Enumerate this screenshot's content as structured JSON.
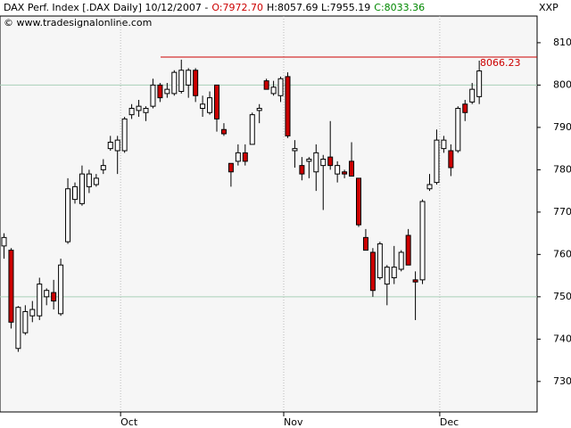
{
  "chart_data": {
    "type": "candlestick",
    "title": "DAX Perf. Index [.DAX  Daily] 10/12/2007 -",
    "header_open": "O:7972.70",
    "header_high_low": "H:8057.69 L:7955.19",
    "header_close": "C:8033.36",
    "copyright": "© www.tradesignalonline.com",
    "axis_label": "XXP",
    "categories": [
      null,
      null,
      null,
      null,
      null,
      null,
      null,
      null,
      null,
      null,
      null,
      null,
      null,
      null,
      null,
      null,
      null,
      "Oct",
      null,
      null,
      null,
      null,
      null,
      null,
      null,
      null,
      null,
      null,
      null,
      null,
      null,
      null,
      null,
      null,
      null,
      null,
      null,
      null,
      null,
      null,
      "Nov",
      null,
      null,
      null,
      null,
      null,
      null,
      null,
      null,
      null,
      null,
      null,
      null,
      null,
      null,
      null,
      null,
      null,
      null,
      null,
      null,
      null,
      "Dec",
      null,
      null,
      null,
      null,
      null
    ],
    "open": [
      7620,
      7610,
      7378,
      7415,
      7455,
      7455,
      7500,
      7510,
      7460,
      7630,
      7730,
      7720,
      7760,
      7765,
      7800,
      7850,
      7845,
      7845,
      7930,
      7940,
      7935,
      7950,
      8000,
      7980,
      7980,
      7985,
      8000,
      8035,
      7945,
      7935,
      8000,
      7895,
      7815,
      7820,
      7840,
      7860,
      7940,
      8010,
      7980,
      7975,
      8020,
      7845,
      7810,
      7820,
      7795,
      7810,
      7830,
      7790,
      7795,
      7820,
      7780,
      7640,
      7605,
      7545,
      7530,
      7545,
      7565,
      7645,
      7540,
      7540,
      7755,
      7770,
      7850,
      7845,
      7845,
      7955,
      7960,
      7972.7
    ],
    "high": [
      7650,
      7615,
      7478,
      7480,
      7490,
      7545,
      7520,
      7540,
      7590,
      7780,
      7770,
      7810,
      7800,
      7790,
      7825,
      7880,
      7880,
      7925,
      7955,
      7965,
      7950,
      8015,
      8005,
      8005,
      8035,
      8060,
      8040,
      8040,
      7975,
      7985,
      8000,
      7910,
      7815,
      7860,
      7860,
      7935,
      7955,
      8015,
      8010,
      8020,
      8030,
      7870,
      7830,
      7830,
      7860,
      7835,
      7915,
      7820,
      7800,
      7865,
      7780,
      7660,
      7615,
      7630,
      7575,
      7620,
      7610,
      7660,
      7560,
      7730,
      7790,
      7895,
      7880,
      7860,
      7950,
      7965,
      8005,
      8057.69
    ],
    "low": [
      7590,
      7425,
      7370,
      7410,
      7440,
      7445,
      7480,
      7470,
      7455,
      7625,
      7720,
      7715,
      7745,
      7760,
      7790,
      7845,
      7790,
      7840,
      7920,
      7925,
      7915,
      7945,
      7960,
      7970,
      7975,
      7980,
      7970,
      7960,
      7925,
      7930,
      7890,
      7880,
      7760,
      7810,
      7810,
      7860,
      7910,
      7990,
      7975,
      7960,
      7875,
      7805,
      7775,
      7780,
      7750,
      7705,
      7800,
      7770,
      7780,
      7785,
      7665,
      7610,
      7500,
      7540,
      7480,
      7530,
      7560,
      7575,
      7445,
      7530,
      7750,
      7765,
      7840,
      7785,
      7840,
      7915,
      7955,
      7955.19
    ],
    "close": [
      7640,
      7440,
      7475,
      7465,
      7470,
      7530,
      7515,
      7490,
      7575,
      7755,
      7760,
      7790,
      7790,
      7780,
      7810,
      7865,
      7870,
      7920,
      7945,
      7950,
      7945,
      8000,
      7970,
      7990,
      8030,
      8035,
      8035,
      7975,
      7955,
      7970,
      7920,
      7885,
      7795,
      7840,
      7820,
      7930,
      7945,
      7990,
      7995,
      8015,
      7880,
      7850,
      7790,
      7825,
      7840,
      7825,
      7810,
      7810,
      7790,
      7785,
      7670,
      7610,
      7515,
      7625,
      7570,
      7570,
      7605,
      7575,
      7535,
      7725,
      7765,
      7870,
      7870,
      7805,
      7945,
      7935,
      7990,
      8033.36
    ],
    "up_color": "#ffffff",
    "down_color": "#cc0000",
    "ylim": [
      7228,
      8163
    ],
    "yticks": [
      7300,
      7400,
      7500,
      7600,
      7700,
      7800,
      7900,
      8000,
      8100
    ],
    "grid_lines": [
      7500,
      8000
    ],
    "grid_color": "#a8d0b8",
    "reference_line": 8066.23,
    "reference_color": "#cc0000"
  }
}
